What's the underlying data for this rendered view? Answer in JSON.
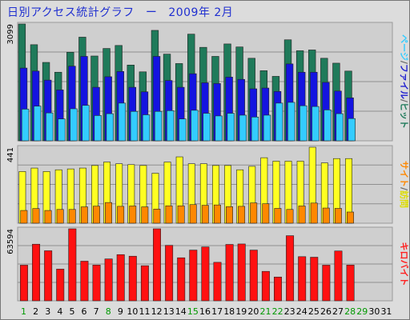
{
  "header": {
    "title": "日別アクセス統計グラフ",
    "separator": "ー",
    "period": "2009年 2月"
  },
  "chart_data": {
    "type": "bar",
    "x": [
      "1",
      "2",
      "3",
      "4",
      "5",
      "6",
      "7",
      "8",
      "9",
      "10",
      "11",
      "12",
      "13",
      "14",
      "15",
      "16",
      "17",
      "18",
      "19",
      "20",
      "21",
      "22",
      "23",
      "24",
      "25",
      "26",
      "27",
      "28",
      "29",
      "30",
      "31"
    ],
    "x_label_colors": [
      "#009900",
      "#000000",
      "#000000",
      "#000000",
      "#000000",
      "#000000",
      "#000000",
      "#009900",
      "#000000",
      "#000000",
      "#000000",
      "#000000",
      "#000000",
      "#000000",
      "#009900",
      "#000000",
      "#000000",
      "#000000",
      "#000000",
      "#000000",
      "#009900",
      "#009900",
      "#000000",
      "#000000",
      "#000000",
      "#000000",
      "#000000",
      "#009900",
      "#009900",
      "#000000",
      "#000000"
    ],
    "panels": [
      {
        "ymax_label": "3099",
        "ymax": 3099,
        "legend": [
          {
            "text": "ページ",
            "color": "#33ccff"
          },
          {
            "text": "/",
            "color": "#666666"
          },
          {
            "text": "ファイル",
            "color": "#1f1fd0"
          },
          {
            "text": "/",
            "color": "#666666"
          },
          {
            "text": "ヒット",
            "color": "#1f7a5a"
          }
        ],
        "series": [
          {
            "color": "#1f7a5a",
            "values": [
              3099,
              2550,
              2080,
              1820,
              2350,
              2750,
              2250,
              2450,
              2530,
              2010,
              1830,
              2930,
              2300,
              2050,
              2830,
              2480,
              2240,
              2570,
              2490,
              2190,
              1860,
              1710,
              2680,
              2390,
              2410,
              2190,
              2060,
              1850,
              0,
              0,
              0
            ]
          },
          {
            "color": "#1414e0",
            "values": [
              1930,
              1850,
              1610,
              1350,
              1980,
              2240,
              1420,
              1700,
              1840,
              1420,
              1300,
              2240,
              1600,
              1420,
              1780,
              1540,
              1520,
              1690,
              1630,
              1380,
              1400,
              1310,
              2040,
              1820,
              1820,
              1550,
              1320,
              1140,
              0,
              0,
              0
            ]
          },
          {
            "color": "#33ccff",
            "values": [
              840,
              920,
              740,
              580,
              850,
              940,
              670,
              720,
              1000,
              780,
              690,
              780,
              800,
              580,
              810,
              730,
              660,
              730,
              680,
              630,
              680,
              1000,
              1020,
              930,
              910,
              820,
              720,
              590,
              0,
              0,
              0
            ]
          }
        ]
      },
      {
        "ymax_label": "441",
        "ymax": 441,
        "legend": [
          {
            "text": "サイト",
            "color": "#ff8800"
          },
          {
            "text": "/",
            "color": "#666666"
          },
          {
            "text": "訪問",
            "color": "#dddd00"
          }
        ],
        "series": [
          {
            "color": "#ffff22",
            "values": [
              300,
              320,
              300,
              310,
              315,
              320,
              335,
              355,
              345,
              340,
              335,
              290,
              355,
              385,
              345,
              345,
              335,
              335,
              310,
              330,
              380,
              360,
              360,
              360,
              441,
              350,
              375,
              375,
              0,
              0,
              0
            ]
          },
          {
            "color": "#ff8800",
            "values": [
              74,
              85,
              74,
              80,
              80,
              95,
              99,
              120,
              98,
              100,
              95,
              82,
              101,
              101,
              108,
              104,
              106,
              96,
              98,
              118,
              113,
              86,
              80,
              100,
              117,
              88,
              86,
              65,
              0,
              0,
              0
            ]
          }
        ]
      },
      {
        "ymax_label": "63594",
        "ymax": 63594,
        "legend": [
          {
            "text": "キロバイト",
            "color": "#ff2020"
          }
        ],
        "series": [
          {
            "color": "#ff1111",
            "values": [
              31500,
              50000,
              44200,
              28000,
              63594,
              35000,
              31600,
              37000,
              40800,
              39400,
              31000,
              63594,
              49000,
              38000,
              44800,
              47600,
              34000,
              49800,
              50200,
              44800,
              26000,
              21000,
              57500,
              39000,
              38500,
              31500,
              44000,
              31600,
              0,
              0,
              0
            ]
          }
        ]
      }
    ]
  }
}
